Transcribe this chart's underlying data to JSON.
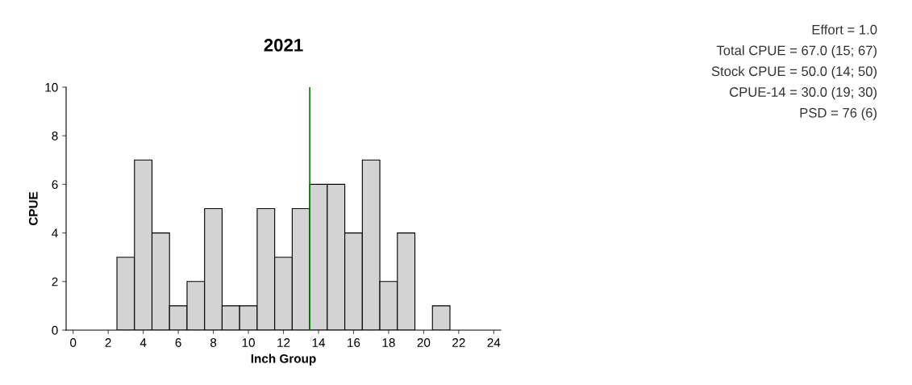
{
  "chart_data": {
    "type": "bar",
    "title": "2021",
    "xlabel": "Inch Group",
    "ylabel": "CPUE",
    "x": [
      3,
      4,
      5,
      6,
      7,
      8,
      9,
      10,
      11,
      12,
      13,
      14,
      15,
      16,
      17,
      18,
      19,
      21
    ],
    "values": [
      3,
      7,
      4,
      1,
      2,
      5,
      1,
      1,
      5,
      3,
      5,
      6,
      6,
      4,
      7,
      2,
      4,
      1
    ],
    "color": "#d3d3d3",
    "xlim": [
      -0.4,
      24.4
    ],
    "xticks": [
      0,
      2,
      4,
      6,
      8,
      10,
      12,
      14,
      16,
      18,
      20,
      22,
      24
    ],
    "ylim": [
      0,
      10
    ],
    "yticks": [
      0,
      2,
      4,
      6,
      8,
      10
    ],
    "grid": false,
    "ref_lines": [
      {
        "axis": "x",
        "value": 13.5,
        "color": "#008000"
      }
    ],
    "annotations": [
      "Effort = 1.0",
      "Total CPUE = 67.0 (15; 67)",
      "Stock CPUE = 50.0 (14; 50)",
      "CPUE-14 = 30.0 (19; 30)",
      "PSD = 76 (6)"
    ]
  }
}
